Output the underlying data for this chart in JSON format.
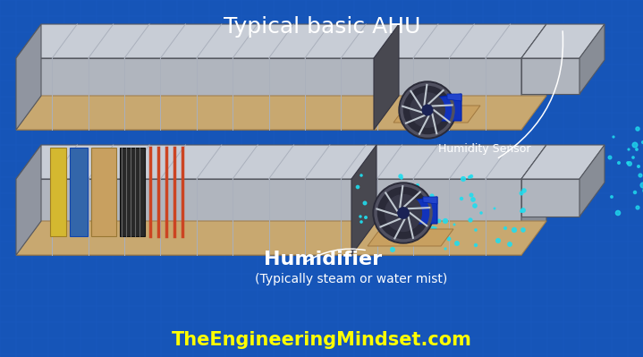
{
  "bg_color": "#1655b8",
  "grid_color": "#2060cc",
  "title": "Typical basic AHU",
  "title_color": "white",
  "title_fontsize": 18,
  "label_humidity_sensor": "Humidity Sensor",
  "label_humidifier": "Humidifier",
  "label_humidifier_sub": "(Typically steam or water mist)",
  "label_website": "TheEngineeringMindset.com",
  "label_color_white": "white",
  "label_color_yellow": "#ffff00",
  "body_top_color": "#c8cdd6",
  "body_front_color": "#b0b5be",
  "body_side_color": "#888d96",
  "body_edge_color": "#555860",
  "end_face_color": "#9095a0",
  "slab_color": "#c8a870",
  "slab_edge": "#a08050",
  "filter_yellow": "#d4b830",
  "filter_blue": "#3366aa",
  "filter_tan": "#c8a060",
  "filter_dark": "#282828",
  "pipe_color": "#cc4422",
  "fan_outer": "#2a2a38",
  "fan_ring": "#505060",
  "fan_blade": "#c0c8d0",
  "fan_hub": "#1a2255",
  "motor_color": "#1133bb",
  "mist_color": "#20ddee",
  "rib_color": "#aab0bc",
  "louver_color": "#50505f",
  "note_arrow_color": "white"
}
